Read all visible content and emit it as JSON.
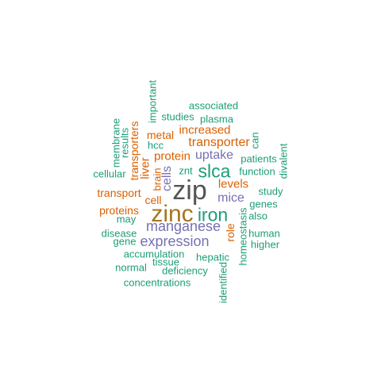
{
  "palette": {
    "green": "#1b9e77",
    "orange": "#d95f02",
    "purple": "#7570b3",
    "olive": "#a6761d",
    "gray": "#555555"
  },
  "words": {
    "zip": "zip",
    "zinc": "zinc",
    "slca": "slca",
    "iron": "iron",
    "manganese": "manganese",
    "expression": "expression",
    "cells": "cells",
    "uptake": "uptake",
    "mice": "mice",
    "transporter": "transporter",
    "increased": "increased",
    "levels": "levels",
    "protein": "protein",
    "liver": "liver",
    "transporters": "transporters",
    "transport": "transport",
    "metal": "metal",
    "proteins": "proteins",
    "role": "role",
    "cell": "cell",
    "brain": "brain",
    "znt": "znt",
    "hcc": "hcc",
    "important": "important",
    "associated": "associated",
    "studies": "studies",
    "plasma": "plasma",
    "membrane": "membrane",
    "results": "results",
    "can": "can",
    "patients": "patients",
    "divalent": "divalent",
    "function": "function",
    "cellular": "cellular",
    "study": "study",
    "genes": "genes",
    "also": "also",
    "may": "may",
    "homeostasis": "homeostasis",
    "human": "human",
    "higher": "higher",
    "disease": "disease",
    "gene": "gene",
    "accumulation": "accumulation",
    "tissue": "tissue",
    "hepatic": "hepatic",
    "normal": "normal",
    "deficiency": "deficiency",
    "identified": "identified",
    "concentrations": "concentrations"
  }
}
